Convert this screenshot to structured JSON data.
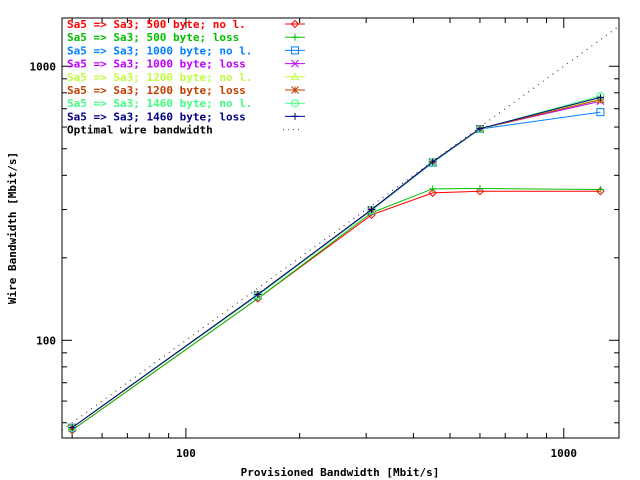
{
  "chart_data": {
    "type": "line",
    "xscale": "log",
    "yscale": "log",
    "xlabel": "Provisioned Bandwidth [Mbit/s]",
    "ylabel": "Wire Bandwidth [Mbit/s]",
    "xlim": [
      47,
      1400
    ],
    "ylim": [
      44,
      1500
    ],
    "xticks": [
      {
        "value": 100,
        "label": "100"
      },
      {
        "value": 1000,
        "label": "1000"
      }
    ],
    "yticks": [
      {
        "value": 100,
        "label": "100"
      },
      {
        "value": 1000,
        "label": "1000"
      }
    ],
    "legend_position": "top-left",
    "series": [
      {
        "name": "Sa5 => Sa3;  500 byte; no l.",
        "color": "#ff0000",
        "marker": "diamond",
        "x": [
          50,
          155,
          310,
          450,
          600,
          1250
        ],
        "y": [
          47,
          142,
          287,
          345,
          350,
          350
        ]
      },
      {
        "name": "Sa5 => Sa3;  500 byte; loss",
        "color": "#00c000",
        "marker": "plus",
        "x": [
          50,
          155,
          310,
          450,
          600,
          1250
        ],
        "y": [
          47,
          142,
          292,
          357,
          358,
          355
        ]
      },
      {
        "name": "Sa5 => Sa3; 1000 byte; no l.",
        "color": "#0080ff",
        "marker": "square",
        "x": [
          50,
          155,
          310,
          450,
          600,
          1250
        ],
        "y": [
          48,
          146,
          298,
          445,
          590,
          680
        ]
      },
      {
        "name": "Sa5 => Sa3; 1000 byte; loss",
        "color": "#c000ff",
        "marker": "cross",
        "x": [
          50,
          155,
          310,
          450,
          600,
          1250
        ],
        "y": [
          48,
          147,
          300,
          448,
          592,
          745
        ]
      },
      {
        "name": "Sa5 => Sa3; 1200 byte; no l.",
        "color": "#c0ff40",
        "marker": "triangle",
        "x": [
          50,
          155,
          310,
          450,
          600,
          1250
        ],
        "y": [
          48,
          146,
          298,
          447,
          590,
          760
        ]
      },
      {
        "name": "Sa5 => Sa3; 1200 byte; loss",
        "color": "#c04000",
        "marker": "star",
        "x": [
          50,
          155,
          310,
          450,
          600,
          1250
        ],
        "y": [
          48,
          147,
          299,
          448,
          591,
          755
        ]
      },
      {
        "name": "Sa5 => Sa3; 1460 byte; no l.",
        "color": "#40ff80",
        "marker": "circle",
        "x": [
          50,
          155,
          310,
          450,
          600,
          1250
        ],
        "y": [
          48,
          146,
          299,
          447,
          590,
          780
        ]
      },
      {
        "name": "Sa5 => Sa3; 1460 byte; loss",
        "color": "#000080",
        "marker": "plus",
        "x": [
          50,
          155,
          310,
          450,
          600,
          1250
        ],
        "y": [
          48,
          147,
          300,
          448,
          592,
          770
        ]
      },
      {
        "name": "Optimal wire bandwidth",
        "color": "#404040",
        "marker": "none",
        "style": "dotted",
        "x": [
          47,
          1400
        ],
        "y": [
          47,
          1400
        ]
      }
    ]
  }
}
